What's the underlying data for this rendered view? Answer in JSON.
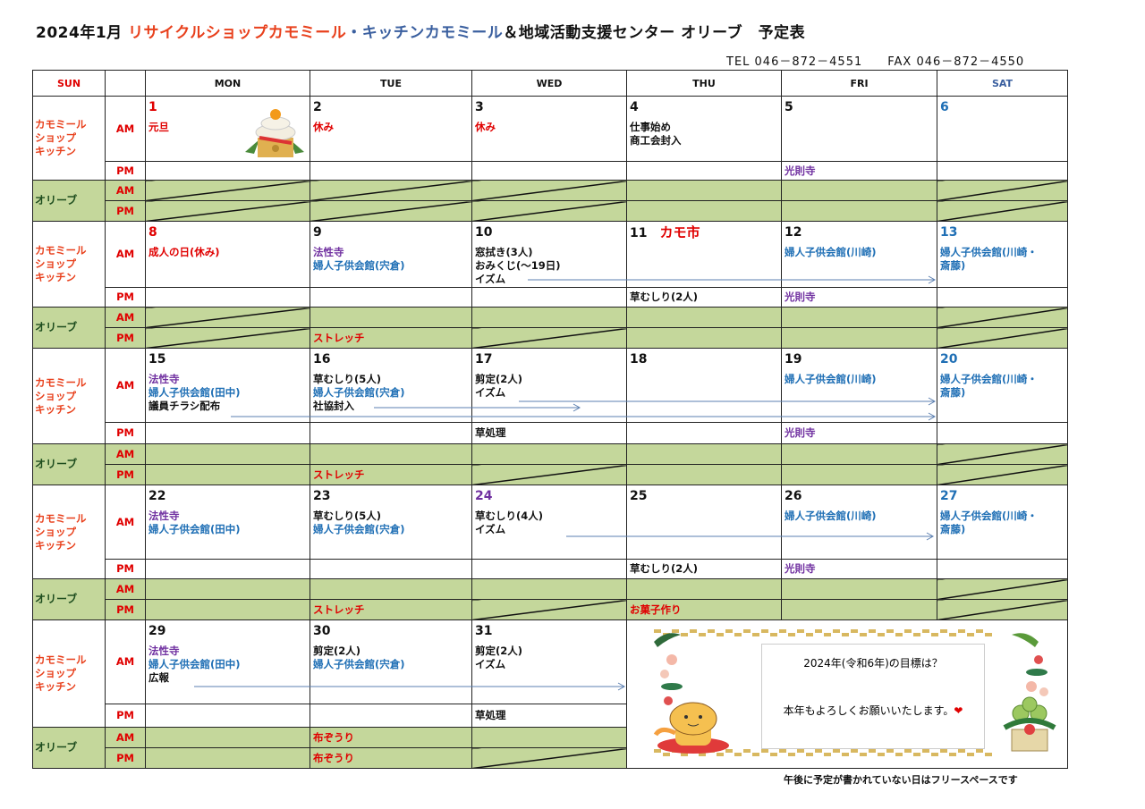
{
  "title": {
    "prefix": "2024年1月 ",
    "shop": "リサイクルショップカモミール",
    "kitchen": "・キッチンカモミール",
    "suffix": "＆地域活動支援センター オリーブ　予定表"
  },
  "contact": {
    "tel": "TEL 046－872－4551",
    "fax": "FAX 046－872－4550"
  },
  "header": [
    "SUN",
    "",
    "MON",
    "TUE",
    "WED",
    "THU",
    "FRI",
    "SAT"
  ],
  "header_colors": [
    "#e00000",
    "#111",
    "#111",
    "#111",
    "#111",
    "#111",
    "#111",
    "#3a5f9f"
  ],
  "groups": {
    "kamomile": "カモミール\nショップ\nキッチン",
    "olive": "オリーブ",
    "am": "AM",
    "pm": "PM"
  },
  "colors": {
    "red": "#e00000",
    "blue": "#1f6fb5",
    "purple": "#7030a0",
    "black": "#111",
    "olive_bg": "#c4d79b"
  },
  "weeks": [
    {
      "days": [
        {
          "num": "1",
          "nc": "red",
          "am": [
            [
              "元旦",
              "red"
            ]
          ],
          "pm": [],
          "oam": [],
          "opm": [],
          "sam": true,
          "spm": true,
          "icon": "kagami-mochi-icon"
        },
        {
          "num": "2",
          "nc": "black",
          "am": [
            [
              "休み",
              "red"
            ]
          ],
          "pm": [],
          "oam": [],
          "opm": [],
          "sam": true,
          "spm": true
        },
        {
          "num": "3",
          "nc": "black",
          "am": [
            [
              "休み",
              "red"
            ]
          ],
          "pm": [],
          "oam": [],
          "opm": [],
          "sam": true,
          "spm": true
        },
        {
          "num": "4",
          "nc": "black",
          "am": [
            [
              "仕事始め",
              "black"
            ],
            [
              "商工会封入",
              "black"
            ]
          ],
          "pm": [],
          "oam": [],
          "opm": []
        },
        {
          "num": "5",
          "nc": "black",
          "am": [],
          "pm": [
            [
              "光則寺",
              "purple"
            ]
          ],
          "oam": [],
          "opm": []
        },
        {
          "num": "6",
          "nc": "blue",
          "am": [],
          "pm": [],
          "oam": [],
          "opm": [],
          "sam": true,
          "spm": true
        }
      ]
    },
    {
      "days": [
        {
          "num": "8",
          "nc": "red",
          "am": [
            [
              "成人の日(休み)",
              "red"
            ]
          ],
          "pm": [],
          "oam": [],
          "opm": [],
          "sam": true,
          "spm": true
        },
        {
          "num": "9",
          "nc": "black",
          "am": [
            [
              "法性寺",
              "purple"
            ],
            [
              "婦人子供会館(宍倉)",
              "blue"
            ]
          ],
          "pm": [],
          "oam": [],
          "opm": [
            [
              "ストレッチ",
              "red"
            ]
          ]
        },
        {
          "num": "10",
          "nc": "black",
          "am": [
            [
              "窓拭き(3人)",
              "black"
            ],
            [
              "おみくじ(～19日)",
              "black"
            ],
            [
              "イズム",
              "black"
            ]
          ],
          "pm": [],
          "oam": [],
          "opm": [],
          "spm": true
        },
        {
          "num": "11",
          "nc": "black",
          "extra": "カモ市",
          "am": [],
          "pm": [
            [
              "草むしり(2人)",
              "black"
            ]
          ],
          "oam": [],
          "opm": []
        },
        {
          "num": "12",
          "nc": "black",
          "am": [
            [
              "婦人子供会館(川崎)",
              "blue"
            ]
          ],
          "pm": [
            [
              "光則寺",
              "purple"
            ]
          ],
          "oam": [],
          "opm": []
        },
        {
          "num": "13",
          "nc": "blue",
          "am": [
            [
              "婦人子供会館(川崎・",
              "blue"
            ],
            [
              "斎藤)",
              "blue"
            ]
          ],
          "pm": [],
          "oam": [],
          "opm": [],
          "sam": true,
          "spm": true
        }
      ]
    },
    {
      "days": [
        {
          "num": "15",
          "nc": "black",
          "am": [
            [
              "法性寺",
              "purple"
            ],
            [
              "婦人子供会館(田中)",
              "blue"
            ],
            [
              "議員チラシ配布",
              "black"
            ]
          ],
          "pm": [],
          "oam": [],
          "opm": []
        },
        {
          "num": "16",
          "nc": "black",
          "am": [
            [
              "草むしり(5人)",
              "black"
            ],
            [
              "婦人子供会館(宍倉)",
              "blue"
            ],
            [
              "社協封入",
              "black"
            ]
          ],
          "pm": [],
          "oam": [],
          "opm": [
            [
              "ストレッチ",
              "red"
            ]
          ]
        },
        {
          "num": "17",
          "nc": "black",
          "am": [
            [
              "剪定(2人)",
              "black"
            ],
            [
              "イズム",
              "black"
            ]
          ],
          "pm": [
            [
              "草処理",
              "black"
            ]
          ],
          "oam": [],
          "opm": [],
          "spm": true
        },
        {
          "num": "18",
          "nc": "black",
          "am": [],
          "pm": [],
          "oam": [],
          "opm": []
        },
        {
          "num": "19",
          "nc": "black",
          "am": [
            [
              "婦人子供会館(川崎)",
              "blue"
            ]
          ],
          "pm": [
            [
              "光則寺",
              "purple"
            ]
          ],
          "oam": [],
          "opm": []
        },
        {
          "num": "20",
          "nc": "blue",
          "am": [
            [
              "婦人子供会館(川崎・",
              "blue"
            ],
            [
              "斎藤)",
              "blue"
            ]
          ],
          "pm": [],
          "oam": [],
          "opm": [],
          "sam": true,
          "spm": true
        }
      ]
    },
    {
      "days": [
        {
          "num": "22",
          "nc": "black",
          "am": [
            [
              "法性寺",
              "purple"
            ],
            [
              "婦人子供会館(田中)",
              "blue"
            ]
          ],
          "pm": [],
          "oam": [],
          "opm": []
        },
        {
          "num": "23",
          "nc": "black",
          "am": [
            [
              "草むしり(5人)",
              "black"
            ],
            [
              "婦人子供会館(宍倉)",
              "blue"
            ]
          ],
          "pm": [],
          "oam": [],
          "opm": [
            [
              "ストレッチ",
              "red"
            ]
          ]
        },
        {
          "num": "24",
          "nc": "purple",
          "am": [
            [
              "草むしり(4人)",
              "black"
            ],
            [
              "イズム",
              "black"
            ]
          ],
          "pm": [],
          "oam": [],
          "opm": [],
          "spm": true
        },
        {
          "num": "25",
          "nc": "black",
          "am": [],
          "pm": [
            [
              "草むしり(2人)",
              "black"
            ]
          ],
          "oam": [],
          "opm": [
            [
              "お菓子作り",
              "red"
            ]
          ]
        },
        {
          "num": "26",
          "nc": "black",
          "am": [
            [
              "婦人子供会館(川崎)",
              "blue"
            ]
          ],
          "pm": [
            [
              "光則寺",
              "purple"
            ]
          ],
          "oam": [],
          "opm": []
        },
        {
          "num": "27",
          "nc": "blue",
          "am": [
            [
              "婦人子供会館(川崎・",
              "blue"
            ],
            [
              "斎藤)",
              "blue"
            ]
          ],
          "pm": [],
          "oam": [],
          "opm": [],
          "sam": true,
          "spm": true
        }
      ]
    },
    {
      "days": [
        {
          "num": "29",
          "nc": "black",
          "am": [
            [
              "法性寺",
              "purple"
            ],
            [
              "婦人子供会館(田中)",
              "blue"
            ],
            [
              "広報",
              "black"
            ]
          ],
          "pm": [],
          "oam": [],
          "opm": []
        },
        {
          "num": "30",
          "nc": "black",
          "am": [
            [
              "剪定(2人)",
              "black"
            ],
            [
              "婦人子供会館(宍倉)",
              "blue"
            ]
          ],
          "pm": [],
          "oam": [
            [
              "布ぞうり",
              "red"
            ]
          ],
          "opm": [
            [
              "布ぞうり",
              "red"
            ]
          ]
        },
        {
          "num": "31",
          "nc": "black",
          "am": [
            [
              "剪定(2人)",
              "black"
            ],
            [
              "イズム",
              "black"
            ]
          ],
          "pm": [
            [
              "草処理",
              "black"
            ]
          ],
          "oam": [],
          "opm": [],
          "spm": true
        }
      ]
    }
  ],
  "card": {
    "goal": "2024年(令和6年)の目標は？",
    "greeting": "本年もよろしくお願いいたします。",
    "heart": "❤",
    "icons": [
      "tiger-icon",
      "kadomatsu-icon",
      "plum-blossom-icon"
    ]
  },
  "footnote": "午後に予定が書かれていない日はフリースペースです"
}
